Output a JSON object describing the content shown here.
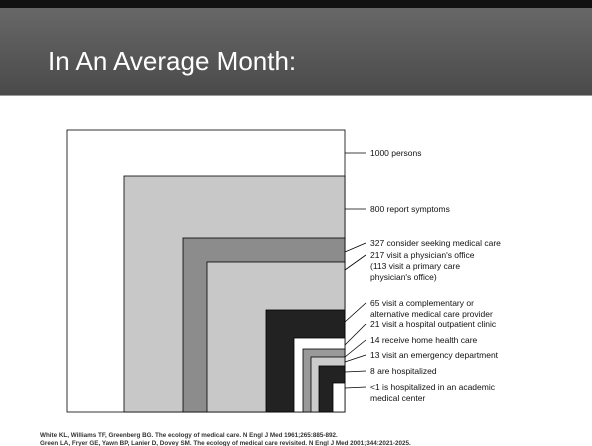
{
  "title": "In An Average Month:",
  "labels": [
    {
      "lines": [
        "1000 persons"
      ]
    },
    {
      "lines": [
        "800 report symptoms"
      ]
    },
    {
      "lines": [
        "327 consider seeking medical care"
      ]
    },
    {
      "lines": [
        "217 visit a physician's office",
        "(113 visit a primary care",
        "physician's office)"
      ]
    },
    {
      "lines": [
        "65 visit a complementary or",
        "alternative medical care provider"
      ]
    },
    {
      "lines": [
        "21 visit a hospital outpatient clinic"
      ]
    },
    {
      "lines": [
        "14 receive home health care"
      ]
    },
    {
      "lines": [
        "13 visit an emergency department"
      ]
    },
    {
      "lines": [
        "8 are hospitalized"
      ]
    },
    {
      "lines": [
        "<1 is hospitalized in an academic",
        "medical center"
      ]
    }
  ],
  "citations": [
    "White KL, Williams TF, Greenberg BG. The ecology of medical care. N Engl J Med 1961;265:885-892.",
    "Green LA, Fryer GE, Yawn BP, Lanier D, Dovey SM. The ecology of medical care revisited. N Engl J Med 2001;344:2021-2025."
  ]
}
